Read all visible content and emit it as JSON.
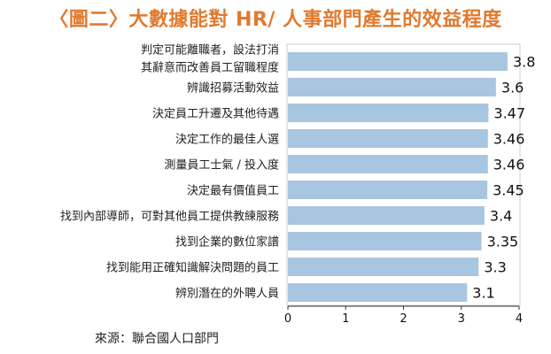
{
  "chart_data": {
    "type": "bar",
    "orientation": "horizontal",
    "title": "〈圖二〉大數據能對 HR/ 人事部門產生的效益程度",
    "categories": [
      "判定可能離職者，設法打消其辭意而改善員工留職程度",
      "辨識招募活動效益",
      "決定員工升遷及其他待遇",
      "決定工作的最佳人選",
      "測量員工士氣 / 投入度",
      "決定最有價值員工",
      "找到內部導師，可對其他員工提供教練服務",
      "找到企業的數位家譜",
      "找到能用正確知識解決問題的員工",
      "辨別潛在的外聘人員"
    ],
    "category_lines": [
      [
        "判定可能離職者，設法打消",
        "其辭意而改善員工留職程度"
      ],
      [
        "辨識招募活動效益"
      ],
      [
        "決定員工升遷及其他待遇"
      ],
      [
        "決定工作的最佳人選"
      ],
      [
        "測量員工士氣 / 投入度"
      ],
      [
        "決定最有價值員工"
      ],
      [
        "找到內部導師，可對其他員工提供教練服務"
      ],
      [
        "找到企業的數位家譜"
      ],
      [
        "找到能用正確知識解決問題的員工"
      ],
      [
        "辨別潛在的外聘人員"
      ]
    ],
    "values": [
      3.8,
      3.6,
      3.47,
      3.46,
      3.46,
      3.45,
      3.4,
      3.35,
      3.3,
      3.1
    ],
    "value_labels": [
      "3.8",
      "3.6",
      "3.47",
      "3.46",
      "3.46",
      "3.45",
      "3.4",
      "3.35",
      "3.3",
      "3.1"
    ],
    "xlim": [
      0,
      4
    ],
    "xticks": [
      "0",
      "1",
      "2",
      "3",
      "4"
    ],
    "grid": false,
    "legend": "none"
  },
  "colors": {
    "title": "#E07A2E",
    "bar": "#A9C6E0",
    "axis": "#333333"
  },
  "source": "來源：聯合國人口部門"
}
